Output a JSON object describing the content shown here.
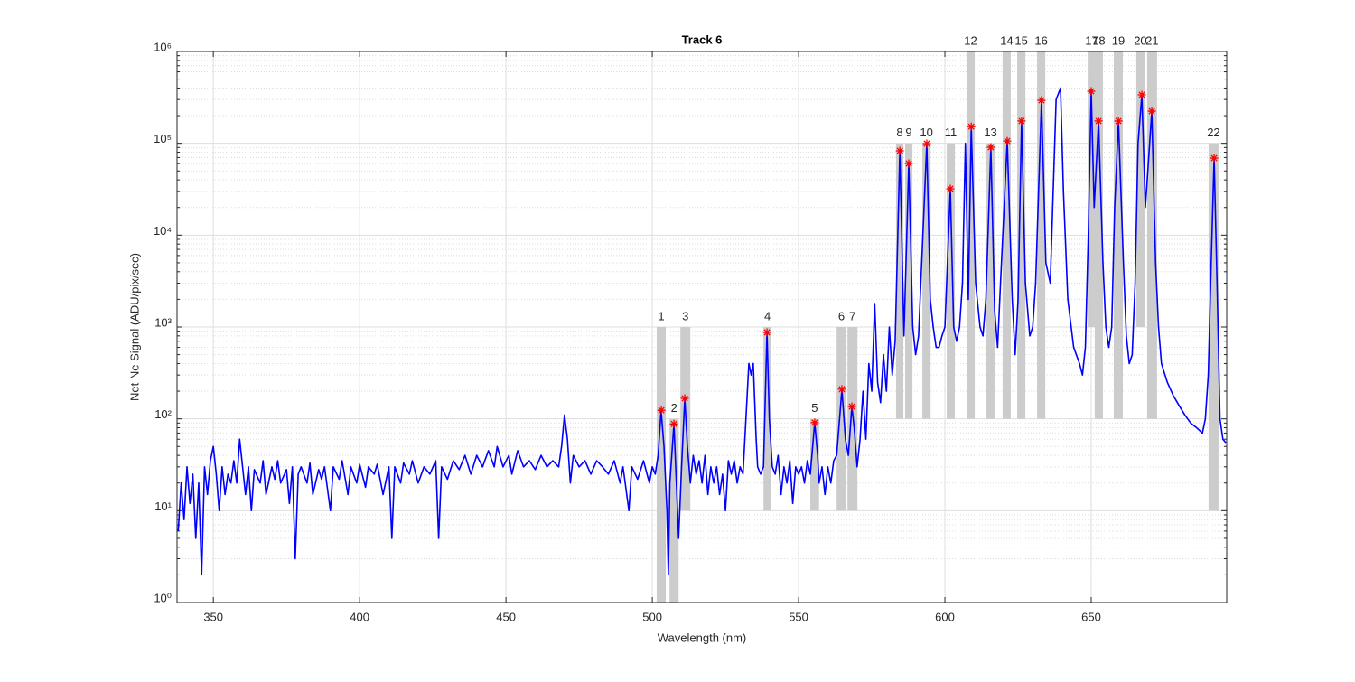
{
  "chart_data": {
    "type": "line",
    "title": "Track 6",
    "x_label": "Wavelength (nm)",
    "y_label": "Net Ne Signal (ADU/pix/sec)",
    "xlim": [
      337.6,
      696.3
    ],
    "ylim": [
      1,
      1000000
    ],
    "log_y": true,
    "grid": true,
    "minor_grid": true,
    "xticks": [
      350,
      400,
      450,
      500,
      550,
      600,
      650
    ],
    "yticks": [
      {
        "value": 1,
        "label": "10⁰"
      },
      {
        "value": 10,
        "label": "10¹"
      },
      {
        "value": 100,
        "label": "10²"
      },
      {
        "value": 1000,
        "label": "10³"
      },
      {
        "value": 10000,
        "label": "10⁴"
      },
      {
        "value": 100000,
        "label": "10⁵"
      },
      {
        "value": 1000000,
        "label": "10⁶"
      }
    ],
    "x": [
      338,
      339,
      340,
      341,
      342,
      343,
      344,
      345,
      346,
      347,
      348,
      349,
      350,
      351,
      352,
      353,
      354,
      355,
      356,
      357,
      358,
      359,
      360,
      361,
      362,
      363,
      364,
      366,
      367,
      368,
      370,
      371,
      372,
      373,
      375,
      376,
      377,
      378,
      379,
      380,
      382,
      383,
      384,
      386,
      387,
      388,
      390,
      391,
      393,
      394,
      396,
      397,
      399,
      400,
      402,
      403,
      405,
      406,
      408,
      410,
      411,
      412,
      414,
      415,
      417,
      418,
      420,
      422,
      424,
      426,
      427,
      428,
      430,
      432,
      434,
      436,
      438,
      440,
      442,
      444,
      446,
      447,
      449,
      451,
      452,
      454,
      456,
      458,
      460,
      462,
      464,
      466,
      468,
      469,
      470,
      471,
      472,
      473,
      475,
      477,
      479,
      481,
      483,
      485,
      487,
      489,
      490,
      492,
      493,
      495,
      497,
      499,
      500,
      501,
      502,
      503,
      504,
      505,
      505.5,
      506,
      507.4,
      508,
      509,
      510,
      511.1,
      512,
      513,
      514,
      515,
      516,
      517,
      518,
      519,
      520,
      521,
      522,
      523,
      524,
      525,
      526,
      527,
      528,
      529,
      530,
      531,
      532,
      533,
      533.8,
      534.5,
      535.5,
      536,
      537,
      538,
      539.2,
      540,
      541,
      542,
      543,
      544,
      545,
      546,
      547,
      548,
      549,
      550,
      551,
      552,
      553,
      554,
      555.5,
      556.5,
      557,
      558,
      559,
      560,
      561,
      562,
      563,
      564.8,
      566,
      567,
      568.2,
      569,
      570,
      571,
      572,
      573,
      574,
      575,
      576,
      577,
      578,
      579,
      580,
      581,
      582,
      583,
      584.6,
      586,
      587.65,
      589,
      590,
      591,
      593.8,
      595,
      596,
      597,
      598,
      599,
      600,
      601.85,
      603,
      604,
      605,
      606,
      607,
      608,
      609,
      610.5,
      612,
      613,
      614,
      615.7,
      617,
      618,
      619,
      621.3,
      623,
      624,
      625,
      626.2,
      627.5,
      629,
      630,
      631,
      633,
      634.5,
      636,
      637,
      638,
      639.5,
      640.5,
      642,
      644,
      646,
      647,
      648,
      649,
      650,
      651,
      652.5,
      654,
      655,
      656,
      657,
      658,
      659.3,
      661,
      662,
      663,
      664,
      665,
      666,
      667.3,
      668.5,
      670.7,
      672,
      673,
      674,
      676,
      678,
      680,
      682,
      684,
      686,
      688,
      689,
      690,
      691,
      692,
      693,
      694,
      695,
      696
    ],
    "series": [
      {
        "color": "#0000ff",
        "values": [
          6,
          20,
          8,
          30,
          12,
          25,
          5,
          20,
          2,
          30,
          15,
          35,
          50,
          25,
          10,
          30,
          15,
          25,
          20,
          35,
          20,
          60,
          30,
          15,
          30,
          10,
          28,
          20,
          35,
          15,
          30,
          22,
          35,
          20,
          28,
          12,
          30,
          3,
          25,
          30,
          20,
          33,
          15,
          28,
          22,
          30,
          10,
          30,
          22,
          35,
          15,
          30,
          20,
          32,
          18,
          30,
          25,
          32,
          15,
          30,
          5,
          30,
          20,
          33,
          25,
          35,
          20,
          30,
          25,
          35,
          5,
          30,
          22,
          35,
          28,
          40,
          25,
          40,
          30,
          45,
          30,
          50,
          30,
          40,
          25,
          45,
          30,
          35,
          28,
          40,
          30,
          35,
          30,
          50,
          110,
          60,
          20,
          40,
          30,
          35,
          25,
          35,
          30,
          25,
          35,
          20,
          30,
          10,
          30,
          22,
          35,
          20,
          30,
          25,
          40,
          124,
          50,
          10,
          2,
          20,
          88,
          30,
          5,
          30,
          167,
          50,
          20,
          40,
          25,
          35,
          20,
          40,
          15,
          30,
          20,
          30,
          15,
          25,
          10,
          35,
          25,
          35,
          20,
          30,
          25,
          100,
          400,
          300,
          400,
          60,
          30,
          25,
          30,
          873,
          100,
          30,
          25,
          40,
          15,
          30,
          20,
          35,
          12,
          30,
          25,
          30,
          20,
          35,
          25,
          91,
          40,
          20,
          30,
          15,
          30,
          20,
          35,
          40,
          210,
          60,
          40,
          136,
          80,
          30,
          60,
          200,
          60,
          400,
          200,
          1800,
          250,
          150,
          500,
          200,
          1000,
          300,
          700,
          82800,
          800,
          60300,
          1000,
          500,
          800,
          99300,
          2000,
          1000,
          600,
          600,
          800,
          1000,
          32000,
          1000,
          700,
          1000,
          3000,
          100000,
          2000,
          152000,
          3000,
          1000,
          800,
          2000,
          90600,
          1500,
          600,
          3000,
          106000,
          2000,
          500,
          2000,
          175000,
          3000,
          800,
          1000,
          3000,
          294000,
          5000,
          3000,
          30000,
          300000,
          400000,
          30000,
          2000,
          600,
          400,
          300,
          600,
          10000,
          369000,
          20000,
          175000,
          5000,
          1000,
          600,
          1000,
          20000,
          175000,
          5000,
          800,
          400,
          500,
          3000,
          100000,
          337000,
          20000,
          224000,
          5000,
          1000,
          400,
          250,
          180,
          140,
          110,
          90,
          80,
          70,
          100,
          300,
          5000,
          69000,
          3000,
          100,
          60,
          55
        ]
      }
    ],
    "peak_color": "#ff0000",
    "band_color": "#cccccc",
    "peaks": [
      {
        "label": "1",
        "x": 503.1,
        "value": 124,
        "range": [
          501.5,
          504.6
        ],
        "span": [
          1,
          1000
        ]
      },
      {
        "label": "2",
        "x": 507.4,
        "value": 88,
        "range": [
          505.9,
          509.0
        ],
        "span": [
          1,
          100
        ]
      },
      {
        "label": "3",
        "x": 511.1,
        "value": 167,
        "range": [
          509.6,
          513.0
        ],
        "span": [
          10,
          1000
        ]
      },
      {
        "label": "4",
        "x": 539.2,
        "value": 873,
        "range": [
          538.0,
          540.7
        ],
        "span": [
          10,
          1000
        ]
      },
      {
        "label": "5",
        "x": 555.5,
        "value": 91,
        "range": [
          554.0,
          557.0
        ],
        "span": [
          10,
          100
        ]
      },
      {
        "label": "6",
        "x": 564.8,
        "value": 210,
        "range": [
          563.0,
          566.3
        ],
        "span": [
          10,
          1000
        ]
      },
      {
        "label": "7",
        "x": 568.2,
        "value": 136,
        "range": [
          566.7,
          570.1
        ],
        "span": [
          10,
          1000
        ]
      },
      {
        "label": "8",
        "x": 584.6,
        "value": 82800,
        "range": [
          583.3,
          585.8
        ],
        "span": [
          100,
          100000
        ]
      },
      {
        "label": "9",
        "x": 587.65,
        "value": 60300,
        "range": [
          586.4,
          588.9
        ],
        "span": [
          100,
          100000
        ]
      },
      {
        "label": "10",
        "x": 593.8,
        "value": 99300,
        "range": [
          592.3,
          595.1
        ],
        "span": [
          100,
          100000
        ]
      },
      {
        "label": "11",
        "x": 601.85,
        "value": 32000,
        "range": [
          600.6,
          603.4
        ],
        "span": [
          100,
          100000
        ]
      },
      {
        "label": "12",
        "x": 609,
        "value": 152000,
        "range": [
          607.4,
          610.2
        ],
        "span": [
          100,
          1000000
        ]
      },
      {
        "label": "13",
        "x": 615.7,
        "value": 90600,
        "range": [
          614.2,
          617.0
        ],
        "span": [
          100,
          100000
        ]
      },
      {
        "label": "14",
        "x": 621.3,
        "value": 106000,
        "range": [
          619.7,
          622.5
        ],
        "span": [
          100,
          1000000
        ]
      },
      {
        "label": "15",
        "x": 626.2,
        "value": 175000,
        "range": [
          624.7,
          627.5
        ],
        "span": [
          100,
          1000000
        ]
      },
      {
        "label": "16",
        "x": 633,
        "value": 294000,
        "range": [
          631.5,
          634.3
        ],
        "span": [
          100,
          1000000
        ]
      },
      {
        "label": "17",
        "x": 650,
        "value": 369000,
        "range": [
          648.8,
          651.5
        ],
        "span": [
          1000,
          1000000
        ]
      },
      {
        "label": "18",
        "x": 652.5,
        "value": 175000,
        "range": [
          651.2,
          654.0
        ],
        "span": [
          100,
          1000000
        ]
      },
      {
        "label": "19",
        "x": 659.3,
        "value": 175000,
        "range": [
          657.7,
          660.8
        ],
        "span": [
          100,
          1000000
        ]
      },
      {
        "label": "20",
        "x": 667.3,
        "value": 337000,
        "range": [
          665.4,
          668.2
        ],
        "span": [
          1000,
          1000000
        ]
      },
      {
        "label": "21",
        "x": 670.7,
        "value": 224000,
        "range": [
          669.1,
          672.5
        ],
        "span": [
          100,
          1000000
        ]
      },
      {
        "label": "22",
        "x": 692,
        "value": 69000,
        "range": [
          690.1,
          693.5
        ],
        "span": [
          10,
          100000
        ]
      }
    ]
  }
}
